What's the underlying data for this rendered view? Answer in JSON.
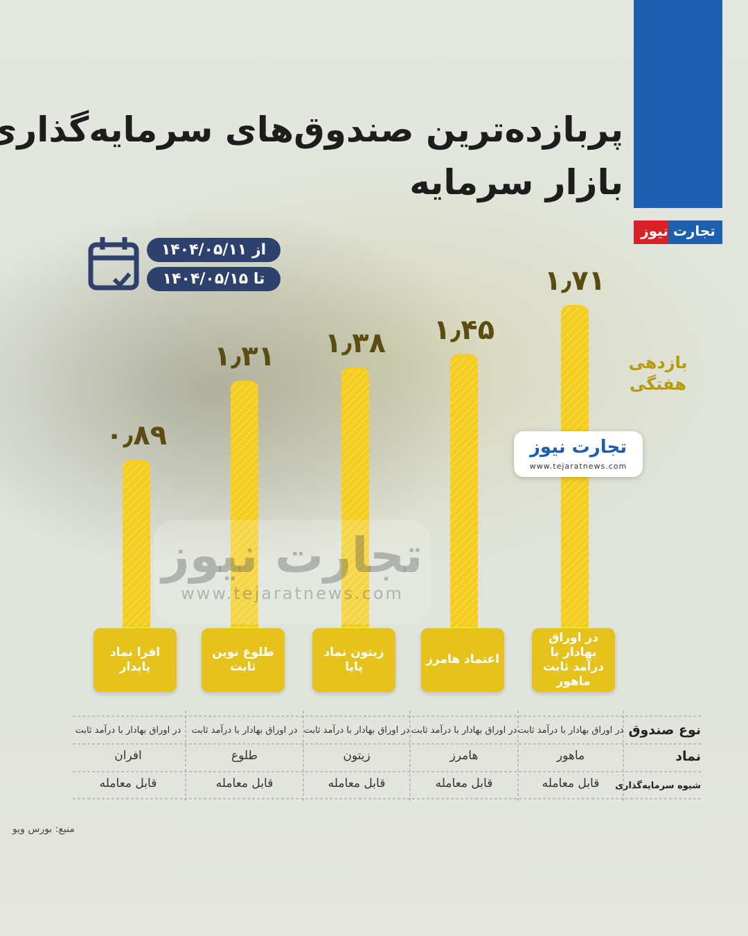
{
  "chart_data": {
    "type": "bar",
    "title": "پربازده‌ترین صندوق‌های سرمایه‌گذاری",
    "subtitle": "بازار سرمایه",
    "date_from": "از ۱۴۰۴/۰۵/۱۱",
    "date_to": "تا ۱۴۰۴/۰۵/۱۵",
    "y_label": "بازدهی هفتگی",
    "categories": [
      "افرا نماد پایدار",
      "طلوع نوین ثابت",
      "زیتون نماد پایا",
      "اعتماد هامرز",
      "در اوراق بهادار با درآمد ثابت ماهور"
    ],
    "values": [
      0.89,
      1.31,
      1.38,
      1.45,
      1.71
    ],
    "value_labels": [
      "۰٫۸۹",
      "۱٫۳۱",
      "۱٫۳۸",
      "۱٫۴۵",
      "۱٫۷۱"
    ],
    "color": "#f4cd1e",
    "source": "منبع: بورس ویو"
  },
  "table": {
    "row_headers": [
      "نوع صندوق",
      "نماد",
      "شیوه سرمایه‌گذاری"
    ],
    "rows": [
      [
        "در اوراق بهادار با درآمد ثابت",
        "در اوراق بهادار با درآمد ثابت",
        "در اوراق بهادار با درآمد ثابت",
        "در اوراق بهادار با درآمد ثابت",
        "در اوراق بهادار با درآمد ثابت"
      ],
      [
        "افران",
        "طلوع",
        "زیتون",
        "هامرز",
        "ماهور"
      ],
      [
        "قابل معامله",
        "قابل معامله",
        "قابل معامله",
        "قابل معامله",
        "قابل معامله"
      ]
    ]
  },
  "brand": {
    "name": "تجارت نیوز",
    "url": "www.tejaratnews.com"
  }
}
